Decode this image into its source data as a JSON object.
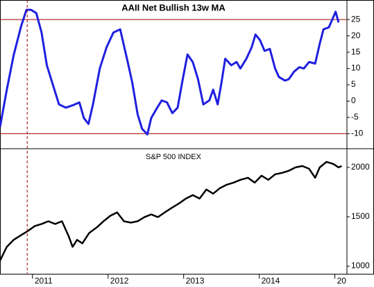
{
  "chart_data": [
    {
      "type": "line",
      "title": "AAII Net Bullish 13w MA",
      "color": "#1f1fe0",
      "x": [
        2010.57,
        2010.66,
        2010.75,
        2010.85,
        2010.92,
        2010.98,
        2011.05,
        2011.12,
        2011.19,
        2011.26,
        2011.35,
        2011.44,
        2011.53,
        2011.62,
        2011.68,
        2011.74,
        2011.8,
        2011.89,
        2011.98,
        2012.07,
        2012.16,
        2012.25,
        2012.32,
        2012.39,
        2012.45,
        2012.52,
        2012.57,
        2012.65,
        2012.71,
        2012.78,
        2012.85,
        2012.92,
        2012.98,
        2013.05,
        2013.12,
        2013.19,
        2013.26,
        2013.34,
        2013.39,
        2013.45,
        2013.5,
        2013.55,
        2013.63,
        2013.7,
        2013.75,
        2013.83,
        2013.9,
        2013.95,
        2014.01,
        2014.07,
        2014.14,
        2014.21,
        2014.26,
        2014.34,
        2014.39,
        2014.46,
        2014.53,
        2014.59,
        2014.66,
        2014.74,
        2014.8,
        2014.85,
        2014.92,
        2014.97,
        2015.01,
        2015.05
      ],
      "values": [
        -8,
        3.5,
        14,
        23,
        28,
        28,
        27,
        21,
        11,
        5.7,
        -1,
        -2,
        -1.3,
        -0.4,
        -5.2,
        -7,
        -1,
        10,
        16.5,
        21,
        22,
        13,
        5.7,
        -4,
        -8.5,
        -10.2,
        -5.2,
        -2,
        0.2,
        -0.4,
        -3.7,
        -2,
        5.7,
        14.3,
        12,
        6.7,
        -1,
        0.2,
        3.5,
        -1,
        5.7,
        13,
        11,
        12,
        10,
        13,
        16.5,
        20.4,
        18.7,
        15.4,
        16,
        10,
        7.4,
        6.3,
        6.7,
        9,
        10.4,
        10,
        12,
        11.5,
        17.6,
        22,
        22.6,
        25.2,
        27.4,
        24.1
      ],
      "xlim": [
        2010.57,
        2015.16
      ],
      "ylim": [
        -14.6,
        31
      ],
      "yticks": [
        25,
        20,
        15,
        10,
        5,
        0,
        -5,
        -10
      ],
      "hlines": [
        25,
        -10
      ],
      "hline_color": "#a00000",
      "vline": 2010.93
    },
    {
      "type": "line",
      "title": "S&P 500 INDEX",
      "color": "#000000",
      "x": [
        2010.57,
        2010.66,
        2010.75,
        2010.85,
        2010.94,
        2011.03,
        2011.12,
        2011.21,
        2011.3,
        2011.39,
        2011.48,
        2011.53,
        2011.59,
        2011.66,
        2011.75,
        2011.85,
        2011.94,
        2012.03,
        2012.12,
        2012.21,
        2012.3,
        2012.39,
        2012.48,
        2012.57,
        2012.66,
        2012.75,
        2012.85,
        2012.94,
        2013.03,
        2013.12,
        2013.21,
        2013.3,
        2013.39,
        2013.48,
        2013.57,
        2013.66,
        2013.75,
        2013.85,
        2013.94,
        2014.03,
        2014.12,
        2014.21,
        2014.3,
        2014.39,
        2014.48,
        2014.57,
        2014.66,
        2014.74,
        2014.8,
        2014.89,
        2014.98,
        2015.05,
        2015.09
      ],
      "values": [
        1056,
        1196,
        1266,
        1315,
        1357,
        1406,
        1427,
        1455,
        1427,
        1455,
        1301,
        1196,
        1266,
        1231,
        1336,
        1392,
        1455,
        1510,
        1545,
        1455,
        1441,
        1455,
        1497,
        1524,
        1497,
        1545,
        1594,
        1636,
        1685,
        1720,
        1685,
        1776,
        1734,
        1790,
        1825,
        1846,
        1874,
        1895,
        1846,
        1916,
        1874,
        1930,
        1944,
        1965,
        2000,
        2014,
        1986,
        1895,
        2000,
        2056,
        2035,
        2000,
        2014
      ],
      "xlim": [
        2010.57,
        2015.16
      ],
      "ylim": [
        916,
        2189
      ],
      "yticks": [
        2000,
        1500,
        1000
      ],
      "xticks": [
        2011,
        2012,
        2013,
        2014,
        {
          "value": 2015,
          "label": "20"
        }
      ]
    }
  ]
}
